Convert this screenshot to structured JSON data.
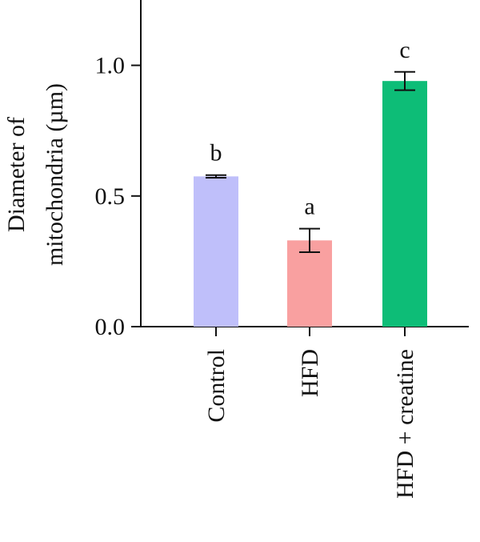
{
  "chart_data": {
    "type": "bar",
    "title": "",
    "ylabel_lines": [
      "Diameter of",
      "mitochondria (µm)"
    ],
    "xlabel": "",
    "ylim": [
      0,
      1.25
    ],
    "yticks": [
      {
        "value": 0.0,
        "label": "0.0"
      },
      {
        "value": 0.5,
        "label": "0.5"
      },
      {
        "value": 1.0,
        "label": "1.0"
      }
    ],
    "categories": [
      "Control",
      "HFD",
      "HFD + creatine"
    ],
    "values": [
      0.575,
      0.33,
      0.94
    ],
    "errors": [
      0.005,
      0.045,
      0.035
    ],
    "significance": [
      "b",
      "a",
      "c"
    ],
    "colors": [
      "#bfbffa",
      "#f9a0a0",
      "#0dbd77"
    ],
    "grid": false,
    "legend": "none"
  }
}
